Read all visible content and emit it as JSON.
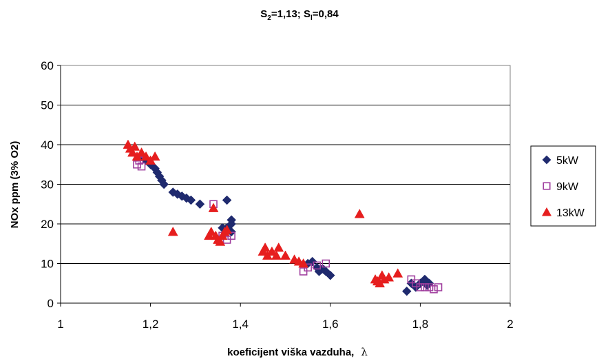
{
  "chart_data": {
    "type": "scatter",
    "title_parts": {
      "s2_label": "S",
      "s2_sub": "2",
      "s2_value": "=1,13; ",
      "s1_label": "S",
      "s1_sub": "l",
      "s1_value": "=0,84"
    },
    "xlabel": "koeficijent viška vazduha,",
    "xlabel_symbol": "λ",
    "ylabel": "NOx ppm (3% O2)",
    "xlim": [
      1,
      2
    ],
    "ylim": [
      0,
      60
    ],
    "x_ticks": [
      1,
      1.2,
      1.4,
      1.6,
      1.8,
      2
    ],
    "x_tick_labels": [
      "1",
      "1,2",
      "1,4",
      "1,6",
      "1,8",
      "2"
    ],
    "y_ticks": [
      0,
      10,
      20,
      30,
      40,
      50,
      60
    ],
    "y_tick_labels": [
      "0",
      "10",
      "20",
      "30",
      "40",
      "50",
      "60"
    ],
    "grid": "horizontal",
    "legend_position": "right",
    "series": [
      {
        "name": "5kW",
        "marker": "diamond",
        "color": "#1f2a6e",
        "points": [
          [
            1.18,
            37
          ],
          [
            1.19,
            36
          ],
          [
            1.2,
            35
          ],
          [
            1.21,
            34
          ],
          [
            1.215,
            33
          ],
          [
            1.22,
            32
          ],
          [
            1.225,
            31
          ],
          [
            1.23,
            30
          ],
          [
            1.25,
            28
          ],
          [
            1.26,
            27.5
          ],
          [
            1.27,
            27
          ],
          [
            1.28,
            26.5
          ],
          [
            1.29,
            26
          ],
          [
            1.31,
            25
          ],
          [
            1.37,
            26
          ],
          [
            1.38,
            21
          ],
          [
            1.38,
            20
          ],
          [
            1.37,
            19
          ],
          [
            1.36,
            19
          ],
          [
            1.38,
            18
          ],
          [
            1.55,
            10
          ],
          [
            1.56,
            10.5
          ],
          [
            1.57,
            9
          ],
          [
            1.58,
            8.5
          ],
          [
            1.59,
            8
          ],
          [
            1.6,
            7
          ],
          [
            1.575,
            8
          ],
          [
            1.585,
            8.5
          ],
          [
            1.78,
            5
          ],
          [
            1.79,
            4
          ],
          [
            1.8,
            5
          ],
          [
            1.81,
            6
          ],
          [
            1.77,
            3
          ],
          [
            1.82,
            5
          ],
          [
            1.815,
            4.5
          ]
        ]
      },
      {
        "name": "9kW",
        "marker": "square",
        "color": "#a03f9e",
        "points": [
          [
            1.17,
            35
          ],
          [
            1.175,
            36
          ],
          [
            1.18,
            34.5
          ],
          [
            1.34,
            25
          ],
          [
            1.36,
            17
          ],
          [
            1.37,
            16
          ],
          [
            1.38,
            17
          ],
          [
            1.54,
            8
          ],
          [
            1.55,
            9
          ],
          [
            1.59,
            10
          ],
          [
            1.57,
            9.5
          ],
          [
            1.78,
            6
          ],
          [
            1.79,
            5
          ],
          [
            1.8,
            4
          ],
          [
            1.81,
            4
          ],
          [
            1.82,
            4
          ],
          [
            1.83,
            3.5
          ],
          [
            1.84,
            4
          ]
        ]
      },
      {
        "name": "13kW",
        "marker": "triangle",
        "color": "#e61e1e",
        "points": [
          [
            1.15,
            40
          ],
          [
            1.155,
            39
          ],
          [
            1.16,
            38
          ],
          [
            1.165,
            39.5
          ],
          [
            1.17,
            37
          ],
          [
            1.18,
            38
          ],
          [
            1.19,
            37
          ],
          [
            1.2,
            36
          ],
          [
            1.21,
            37
          ],
          [
            1.25,
            18
          ],
          [
            1.33,
            17
          ],
          [
            1.335,
            18
          ],
          [
            1.34,
            24
          ],
          [
            1.345,
            17
          ],
          [
            1.35,
            16
          ],
          [
            1.355,
            15.5
          ],
          [
            1.36,
            17
          ],
          [
            1.365,
            18
          ],
          [
            1.37,
            18.5
          ],
          [
            1.45,
            13
          ],
          [
            1.455,
            14
          ],
          [
            1.46,
            12
          ],
          [
            1.47,
            13
          ],
          [
            1.48,
            12
          ],
          [
            1.485,
            14
          ],
          [
            1.5,
            12
          ],
          [
            1.52,
            11
          ],
          [
            1.53,
            10.5
          ],
          [
            1.54,
            10
          ],
          [
            1.665,
            22.5
          ],
          [
            1.7,
            6
          ],
          [
            1.705,
            5.5
          ],
          [
            1.71,
            5
          ],
          [
            1.715,
            7
          ],
          [
            1.72,
            6
          ],
          [
            1.73,
            6.5
          ],
          [
            1.75,
            7.5
          ]
        ]
      }
    ]
  }
}
